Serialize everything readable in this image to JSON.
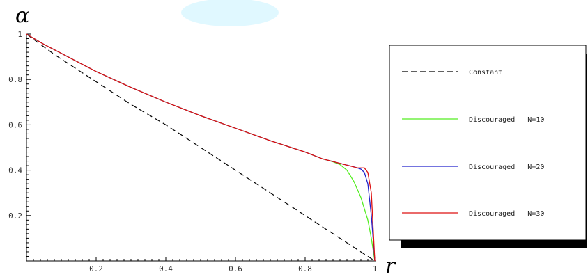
{
  "chart_data": {
    "type": "line",
    "title": "",
    "xlabel": "r",
    "ylabel": "α",
    "xlim": [
      0,
      1
    ],
    "ylim": [
      0,
      1
    ],
    "x_ticks": [
      0.2,
      0.4,
      0.6,
      0.8,
      1
    ],
    "x_tick_labels": [
      "0.2",
      "0.4",
      "0.6",
      "0.8",
      "1"
    ],
    "y_ticks": [
      0.2,
      0.4,
      0.6,
      0.8,
      1
    ],
    "y_tick_labels": [
      "0.2",
      "0.4",
      "0.6",
      "0.8",
      "1"
    ],
    "grid": false,
    "legend_position": "right",
    "series": [
      {
        "name": "Constant",
        "color": "#000000",
        "style": "dashed",
        "x": [
          0,
          0.08,
          0.15,
          0.2,
          0.25,
          0.3,
          0.4,
          0.5,
          0.6,
          0.7,
          0.8,
          0.9,
          1.0
        ],
        "y": [
          1.0,
          0.91,
          0.84,
          0.79,
          0.74,
          0.69,
          0.6,
          0.5,
          0.4,
          0.3,
          0.2,
          0.1,
          0.0
        ]
      },
      {
        "name": "Discouraged   N=10",
        "color": "#55ee22",
        "style": "solid",
        "x": [
          0,
          0.05,
          0.1,
          0.2,
          0.3,
          0.4,
          0.5,
          0.6,
          0.7,
          0.8,
          0.85,
          0.88,
          0.9,
          0.92,
          0.94,
          0.96,
          0.98,
          0.99,
          1.0
        ],
        "y": [
          1.0,
          0.955,
          0.915,
          0.835,
          0.765,
          0.7,
          0.64,
          0.585,
          0.53,
          0.48,
          0.45,
          0.437,
          0.425,
          0.4,
          0.35,
          0.28,
          0.18,
          0.1,
          0.0
        ]
      },
      {
        "name": "Discouraged   N=20",
        "color": "#2222cc",
        "style": "solid",
        "x": [
          0,
          0.05,
          0.1,
          0.2,
          0.3,
          0.4,
          0.5,
          0.6,
          0.7,
          0.8,
          0.85,
          0.9,
          0.94,
          0.96,
          0.97,
          0.98,
          0.99,
          1.0
        ],
        "y": [
          1.0,
          0.955,
          0.915,
          0.835,
          0.765,
          0.7,
          0.64,
          0.585,
          0.53,
          0.48,
          0.45,
          0.43,
          0.415,
          0.405,
          0.39,
          0.34,
          0.2,
          0.0
        ]
      },
      {
        "name": "Discouraged   N=30",
        "color": "#dd1111",
        "style": "solid",
        "x": [
          0,
          0.05,
          0.1,
          0.2,
          0.3,
          0.4,
          0.5,
          0.6,
          0.7,
          0.8,
          0.85,
          0.9,
          0.95,
          0.97,
          0.98,
          0.99,
          1.0
        ],
        "y": [
          1.0,
          0.955,
          0.915,
          0.835,
          0.765,
          0.7,
          0.64,
          0.585,
          0.53,
          0.48,
          0.45,
          0.43,
          0.41,
          0.41,
          0.39,
          0.3,
          0.0
        ]
      }
    ]
  },
  "watermark": {
    "color": "#00c8ff"
  }
}
